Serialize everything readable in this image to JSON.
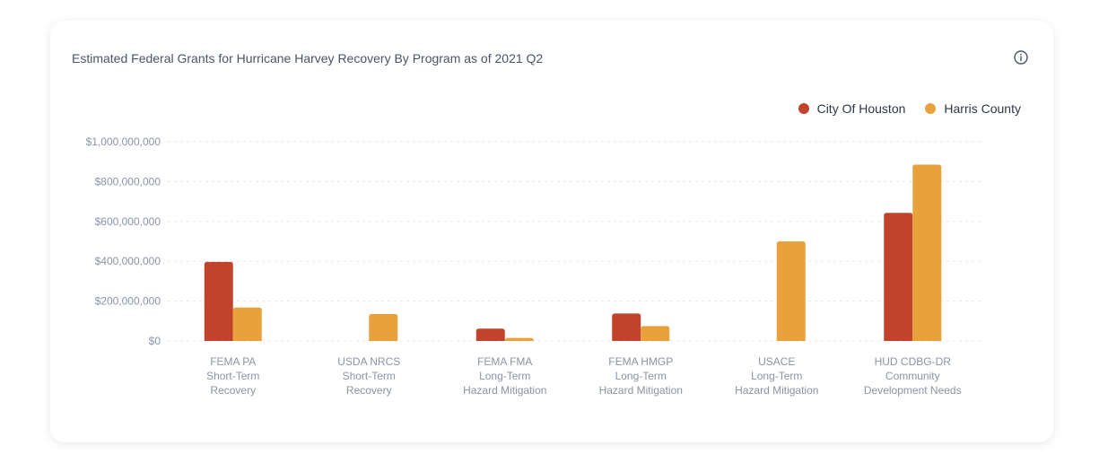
{
  "chart_data": {
    "type": "bar",
    "title": "Estimated Federal Grants for Hurricane Harvey Recovery By Program as of 2021 Q2",
    "categories": [
      [
        "FEMA PA",
        "Short-Term",
        "Recovery"
      ],
      [
        "USDA NRCS",
        "Short-Term",
        "Recovery"
      ],
      [
        "FEMA FMA",
        "Long-Term",
        "Hazard Mitigation"
      ],
      [
        "FEMA HMGP",
        "Long-Term",
        "Hazard Mitigation"
      ],
      [
        "USACE",
        "Long-Term",
        "Hazard Mitigation"
      ],
      [
        "HUD CDBG-DR",
        "Community",
        "Development Needs"
      ]
    ],
    "series": [
      {
        "name": "City Of Houston",
        "color": "#c1432b",
        "values": [
          397000000,
          0,
          62000000,
          138000000,
          0,
          643000000
        ]
      },
      {
        "name": "Harris County",
        "color": "#e9a23b",
        "values": [
          168000000,
          135000000,
          15000000,
          75000000,
          500000000,
          885000000
        ]
      }
    ],
    "ylim": [
      0,
      1000000000
    ],
    "yticks": [
      0,
      200000000,
      400000000,
      600000000,
      800000000,
      1000000000
    ],
    "ytick_labels": [
      "$0",
      "$200,000,000",
      "$400,000,000",
      "$600,000,000",
      "$800,000,000",
      "$1,000,000,000"
    ],
    "grid": true,
    "legend": "top-right"
  },
  "info_icon": "info-icon"
}
